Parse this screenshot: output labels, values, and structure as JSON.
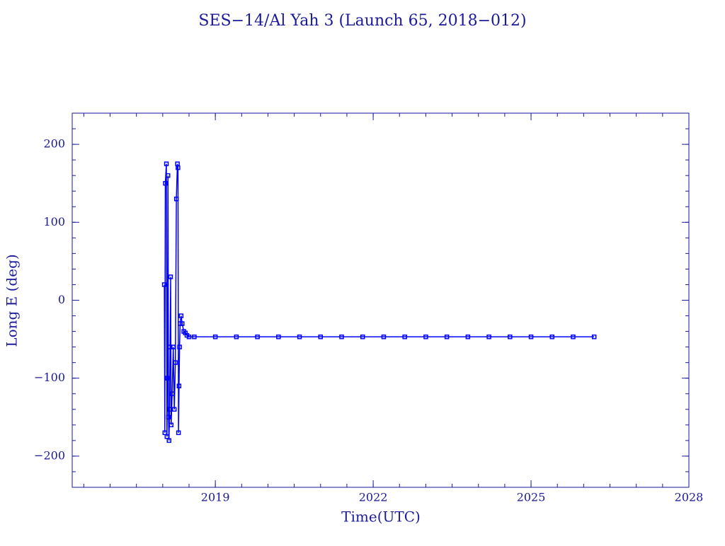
{
  "chart_data": {
    "type": "line",
    "title": "SES−14/Al Yah 3 (Launch 65, 2018−012)",
    "xlabel": "Time(UTC)",
    "ylabel": "Long E (deg)",
    "xlim": [
      2016.28,
      2028
    ],
    "ylim": [
      -240,
      240
    ],
    "xticks": [
      2019,
      2022,
      2025,
      2028
    ],
    "yticks": [
      {
        "value": -200,
        "label": "−200"
      },
      {
        "value": -100,
        "label": "−100"
      },
      0,
      100,
      200
    ],
    "axis_color": "#1a1a9a",
    "series": [
      {
        "color": "#0000ff",
        "x": [
          2018.03,
          2018.04,
          2018.05,
          2018.07,
          2018.08,
          2018.09,
          2018.1,
          2018.11,
          2018.12,
          2018.13,
          2018.14,
          2018.15,
          2018.16,
          2018.18,
          2018.2,
          2018.22,
          2018.24,
          2018.26,
          2018.28,
          2018.29,
          2018.3,
          2018.31,
          2018.32,
          2018.33,
          2018.35,
          2018.37,
          2018.4,
          2018.43,
          2018.46,
          2018.5,
          2018.6,
          2019.0,
          2019.4,
          2019.8,
          2020.2,
          2020.6,
          2021.0,
          2021.4,
          2021.8,
          2022.2,
          2022.6,
          2023.0,
          2023.4,
          2023.8,
          2024.2,
          2024.6,
          2025.0,
          2025.4,
          2025.8,
          2026.2
        ],
        "values": [
          20,
          -170,
          150,
          175,
          -175,
          -100,
          160,
          -150,
          -180,
          -140,
          -60,
          30,
          -160,
          -120,
          -60,
          -140,
          -80,
          130,
          175,
          170,
          -170,
          -110,
          -60,
          -30,
          -20,
          -30,
          -40,
          -42,
          -45,
          -47,
          -47,
          -47,
          -47,
          -47,
          -47,
          -47,
          -47,
          -47,
          -47,
          -47,
          -47,
          -47,
          -47,
          -47,
          -47,
          -47,
          -47,
          -47,
          -47,
          -47
        ]
      }
    ]
  }
}
